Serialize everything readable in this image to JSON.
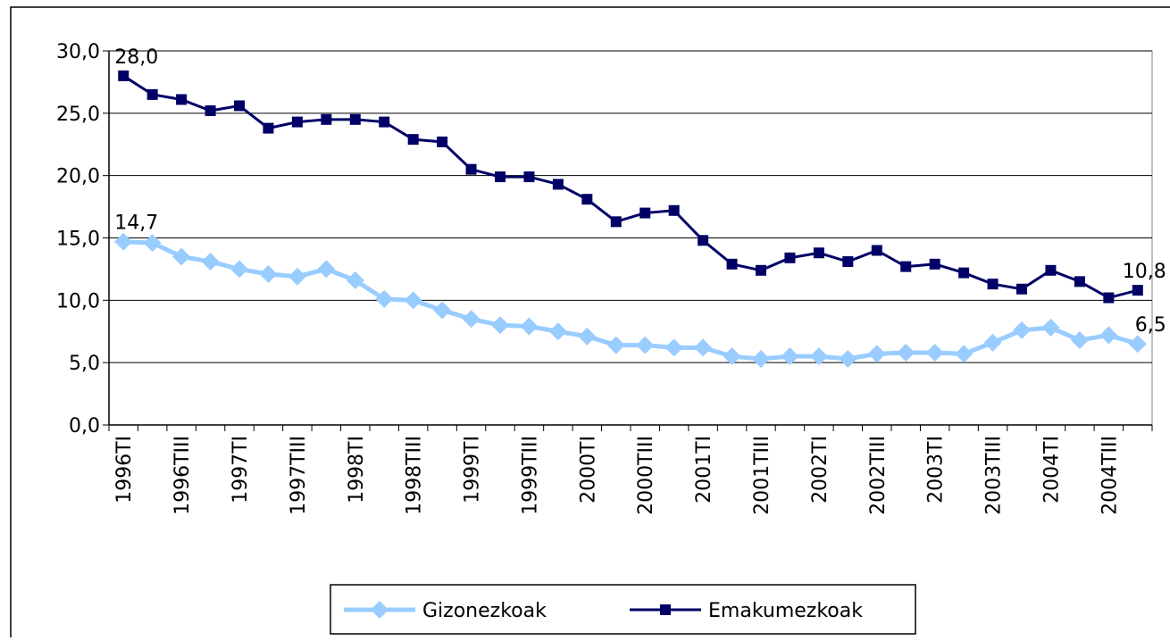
{
  "chart_data": {
    "type": "line",
    "categories": [
      "1996TI",
      null,
      "1996TIII",
      null,
      "1997TI",
      null,
      "1997TIII",
      null,
      "1998TI",
      null,
      "1998TIII",
      null,
      "1999TI",
      null,
      "1999TIII",
      null,
      "2000TI",
      null,
      "2000TIII",
      null,
      "2001TI",
      null,
      "2001TIII",
      null,
      "2002TI",
      null,
      "2002TIII",
      null,
      "2003TI",
      null,
      "2003TIII",
      null,
      "2004TI",
      null,
      "2004TIII",
      null
    ],
    "series": [
      {
        "name": "Gizonezkoak",
        "color": "#99ccff",
        "marker": "diamond",
        "values": [
          14.7,
          14.6,
          13.5,
          13.1,
          12.5,
          12.1,
          11.9,
          12.5,
          11.6,
          10.1,
          10.0,
          9.2,
          8.5,
          8.0,
          7.9,
          7.5,
          7.1,
          6.4,
          6.4,
          6.2,
          6.2,
          5.5,
          5.3,
          5.5,
          5.5,
          5.3,
          5.7,
          5.8,
          5.8,
          5.7,
          6.6,
          7.6,
          7.8,
          6.8,
          7.2,
          6.5
        ],
        "value_labels": [
          "14,7",
          null,
          null,
          null,
          null,
          null,
          null,
          null,
          null,
          null,
          null,
          null,
          null,
          null,
          null,
          null,
          null,
          null,
          null,
          null,
          null,
          null,
          null,
          null,
          null,
          null,
          null,
          null,
          null,
          null,
          null,
          null,
          null,
          null,
          null,
          "6,5"
        ]
      },
      {
        "name": "Emakumezkoak",
        "color": "#000066",
        "marker": "square",
        "values": [
          28.0,
          26.5,
          26.1,
          25.2,
          25.6,
          23.8,
          24.3,
          24.5,
          24.5,
          24.3,
          22.9,
          22.7,
          20.5,
          19.9,
          19.9,
          19.3,
          18.1,
          16.3,
          17.0,
          17.2,
          14.8,
          12.9,
          12.4,
          13.4,
          13.8,
          13.1,
          14.0,
          12.7,
          12.9,
          12.2,
          11.3,
          10.9,
          12.4,
          11.5,
          10.2,
          10.8
        ],
        "value_labels": [
          "28,0",
          null,
          null,
          null,
          null,
          null,
          null,
          null,
          null,
          null,
          null,
          null,
          null,
          null,
          null,
          null,
          null,
          null,
          null,
          null,
          null,
          null,
          null,
          null,
          null,
          null,
          null,
          null,
          null,
          null,
          null,
          null,
          null,
          null,
          null,
          "10,8"
        ]
      }
    ],
    "ylim": [
      0,
      30
    ],
    "yticks": [
      {
        "value": 0,
        "label": "0,0"
      },
      {
        "value": 5,
        "label": "5,0"
      },
      {
        "value": 10,
        "label": "10,0"
      },
      {
        "value": 15,
        "label": "15,0"
      },
      {
        "value": 20,
        "label": "20,0"
      },
      {
        "value": 25,
        "label": "25,0"
      },
      {
        "value": 30,
        "label": "30,0"
      }
    ],
    "grid": true,
    "legend": "bottom"
  }
}
